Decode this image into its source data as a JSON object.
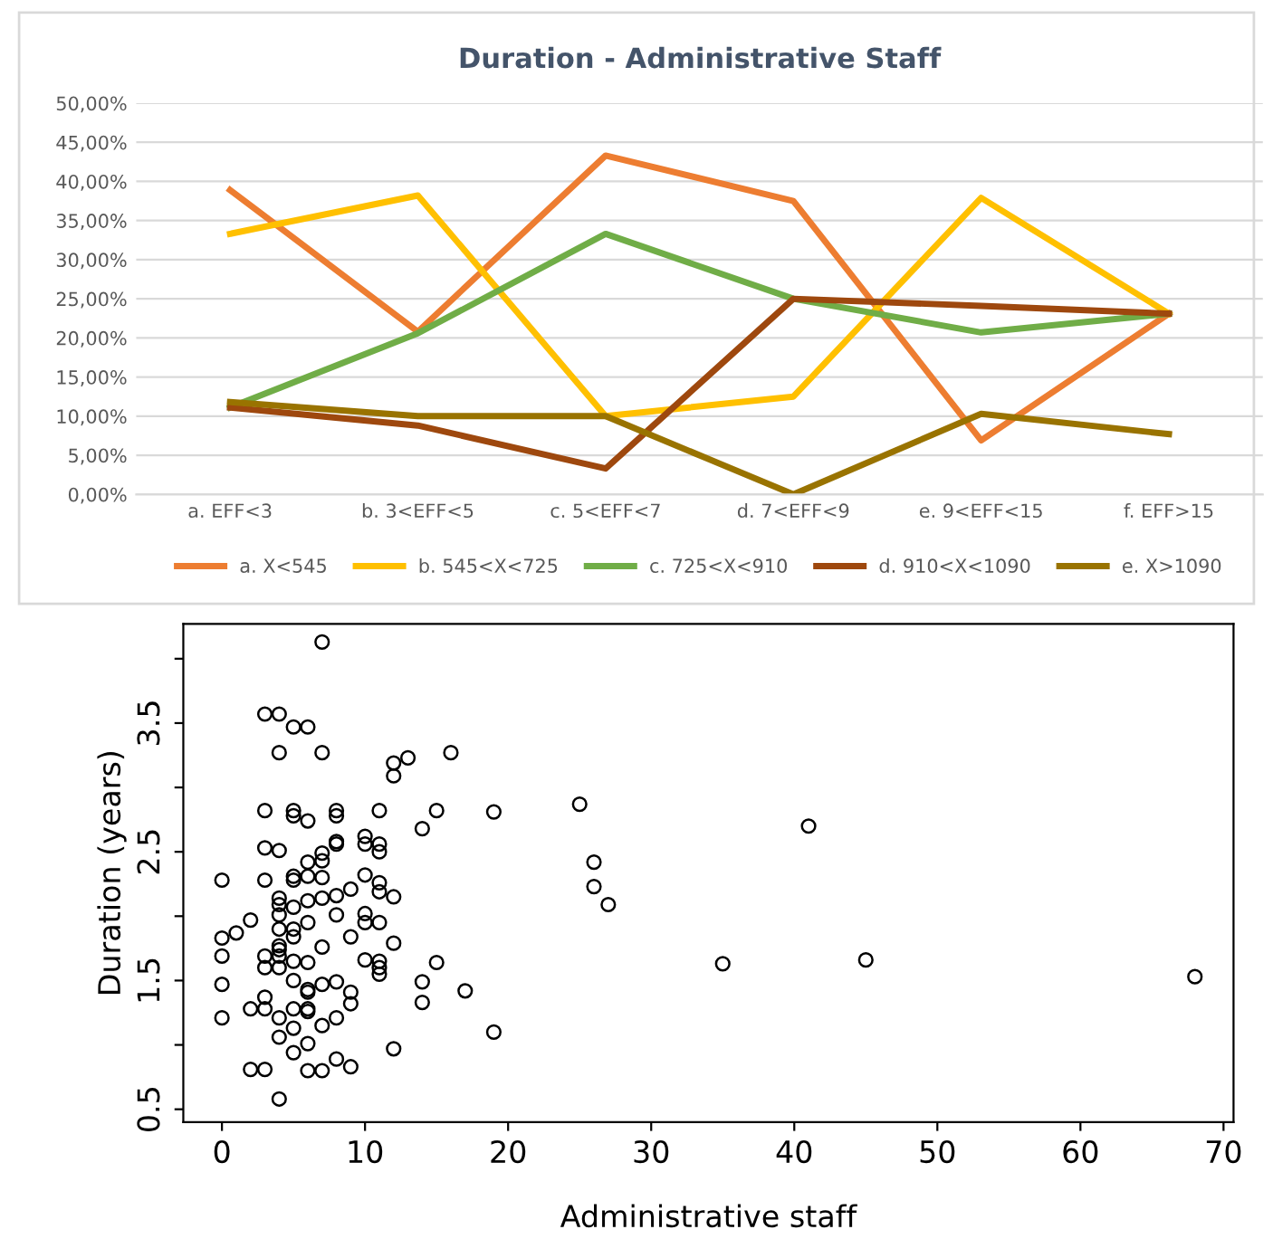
{
  "chart_data": [
    {
      "type": "line",
      "title": "Duration - Administrative Staff",
      "categories": [
        "a. EFF<3",
        "b. 3<EFF<5",
        "c. 5<EFF<7",
        "d. 7<EFF<9",
        "e. 9<EFF<15",
        "f. EFF>15"
      ],
      "series": [
        {
          "name": "a. X<545",
          "color": "#ed7d31",
          "values": [
            38.9,
            20.8,
            43.3,
            37.5,
            6.9,
            23.1
          ]
        },
        {
          "name": "b. 545<X<725",
          "color": "#ffc000",
          "values": [
            33.3,
            38.2,
            10.0,
            12.5,
            37.9,
            23.1
          ]
        },
        {
          "name": "c. 725<X<910",
          "color": "#70ad47",
          "values": [
            11.1,
            20.6,
            33.3,
            25.0,
            20.7,
            23.1
          ]
        },
        {
          "name": "d. 910<X<1090",
          "color": "#9e480e",
          "values": [
            11.1,
            8.8,
            3.3,
            25.0,
            24.1,
            23.1
          ]
        },
        {
          "name": "e. X>1090",
          "color": "#997300",
          "values": [
            11.8,
            10.0,
            10.0,
            0.0,
            10.3,
            7.7
          ]
        }
      ],
      "ylim": [
        0,
        50
      ],
      "yticks": [
        {
          "value": 0,
          "label": "0,00%"
        },
        {
          "value": 5,
          "label": "5,00%"
        },
        {
          "value": 10,
          "label": "10,00%"
        },
        {
          "value": 15,
          "label": "15,00%"
        },
        {
          "value": 20,
          "label": "20,00%"
        },
        {
          "value": 25,
          "label": "25,00%"
        },
        {
          "value": 30,
          "label": "30,00%"
        },
        {
          "value": 35,
          "label": "35,00%"
        },
        {
          "value": 40,
          "label": "40,00%"
        },
        {
          "value": 45,
          "label": "45,00%"
        },
        {
          "value": 50,
          "label": "50,00%"
        }
      ],
      "grid": "y",
      "legend": "bottom",
      "marker": "none",
      "line_style": "solid"
    },
    {
      "type": "scatter",
      "xlabel": "Administrative staff",
      "ylabel": "Duration (years)",
      "marker": "circle",
      "grid": false,
      "xlim": [
        -2.7,
        70.7
      ],
      "ylim": [
        0.4,
        4.27
      ],
      "xticks": [
        0,
        10,
        20,
        30,
        40,
        50,
        60,
        70
      ],
      "yticks": [
        {
          "value": 0.5,
          "label": "0.5"
        },
        {
          "value": 1.0,
          "label": null
        },
        {
          "value": 1.5,
          "label": "1.5"
        },
        {
          "value": 2.0,
          "label": null
        },
        {
          "value": 2.5,
          "label": "2.5"
        },
        {
          "value": 3.0,
          "label": null
        },
        {
          "value": 3.5,
          "label": "3.5"
        },
        {
          "value": 4.0,
          "label": null
        }
      ],
      "series": [
        {
          "color": "#000000",
          "x": [
            7,
            3,
            4,
            5,
            6,
            4,
            7,
            12,
            13,
            12,
            16,
            3,
            5,
            5,
            6,
            8,
            8,
            11,
            15,
            14,
            3,
            4,
            6,
            7,
            7,
            8,
            8,
            10,
            11,
            11,
            10,
            0,
            3,
            5,
            5,
            6,
            7,
            4,
            4,
            5,
            6,
            7,
            8,
            9,
            10,
            11,
            11,
            12,
            2,
            1,
            0,
            0,
            4,
            4,
            5,
            5,
            6,
            8,
            9,
            10,
            10,
            11,
            4,
            4,
            7,
            3,
            3,
            4,
            4,
            5,
            6,
            10,
            11,
            11,
            11,
            12,
            15,
            0,
            0,
            3,
            2,
            3,
            5,
            6,
            6,
            7,
            8,
            9,
            9,
            4,
            5,
            5,
            6,
            6,
            7,
            8,
            4,
            5,
            6,
            8,
            9,
            14,
            14,
            17,
            12,
            2,
            3,
            6,
            7,
            4,
            19,
            25,
            26,
            26,
            27,
            41,
            35,
            45,
            68,
            19
          ],
          "values": [
            4.13,
            3.57,
            3.57,
            3.47,
            3.47,
            3.27,
            3.27,
            3.19,
            3.23,
            3.09,
            3.27,
            2.82,
            2.82,
            2.78,
            2.74,
            2.82,
            2.78,
            2.82,
            2.82,
            2.68,
            2.53,
            2.51,
            2.42,
            2.43,
            2.49,
            2.56,
            2.58,
            2.62,
            2.56,
            2.5,
            2.56,
            2.28,
            2.28,
            2.28,
            2.31,
            2.31,
            2.3,
            2.14,
            2.09,
            2.07,
            2.12,
            2.14,
            2.16,
            2.21,
            2.32,
            2.26,
            2.19,
            2.15,
            1.97,
            1.87,
            1.83,
            1.69,
            2.01,
            1.9,
            1.9,
            1.84,
            1.95,
            2.01,
            1.84,
            2.02,
            1.95,
            1.95,
            1.77,
            1.74,
            1.76,
            1.69,
            1.6,
            1.69,
            1.6,
            1.65,
            1.64,
            1.66,
            1.65,
            1.6,
            1.55,
            1.79,
            1.64,
            1.47,
            1.21,
            1.37,
            1.28,
            1.28,
            1.5,
            1.43,
            1.41,
            1.47,
            1.49,
            1.41,
            1.32,
            1.21,
            1.28,
            1.13,
            1.28,
            1.26,
            1.15,
            1.21,
            1.06,
            0.94,
            1.01,
            0.89,
            0.83,
            1.49,
            1.33,
            1.42,
            0.97,
            0.81,
            0.81,
            0.8,
            0.8,
            0.58,
            2.81,
            2.87,
            2.42,
            2.23,
            2.09,
            2.7,
            1.63,
            1.66,
            1.53,
            1.1
          ]
        }
      ]
    }
  ]
}
